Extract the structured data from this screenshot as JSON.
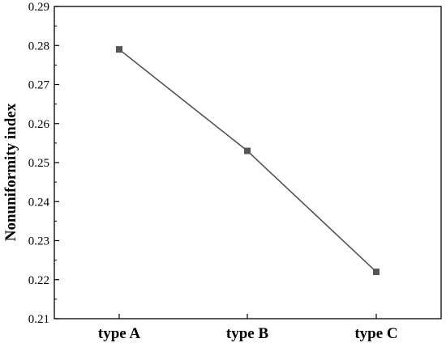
{
  "chart_data": {
    "type": "line",
    "title": "",
    "xlabel": "",
    "ylabel": "Nonuniformity index",
    "categories": [
      "type A",
      "type B",
      "type C"
    ],
    "series": [
      {
        "values": [
          0.279,
          0.253,
          0.222
        ],
        "color": "#555555",
        "marker": "square"
      }
    ],
    "ylim": [
      0.21,
      0.29
    ],
    "yticks": [
      "0.21",
      "0.22",
      "0.23",
      "0.24",
      "0.25",
      "0.26",
      "0.27",
      "0.28",
      "0.29"
    ],
    "grid": false,
    "legend": "none"
  }
}
